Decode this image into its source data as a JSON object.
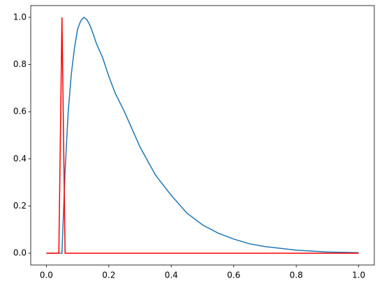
{
  "chart_data": {
    "type": "line",
    "series": [
      {
        "color": "#1f77b4",
        "x": [
          0,
          0.05,
          0.06,
          0.07,
          0.08,
          0.09,
          0.1,
          0.11,
          0.12,
          0.13,
          0.14,
          0.15,
          0.16,
          0.18,
          0.2,
          0.22,
          0.25,
          0.3,
          0.35,
          0.4,
          0.45,
          0.5,
          0.55,
          0.6,
          0.65,
          0.7,
          0.8,
          0.9,
          1.0
        ],
        "values": [
          0,
          0,
          0.35,
          0.6,
          0.76,
          0.87,
          0.95,
          0.985,
          1.0,
          0.99,
          0.965,
          0.93,
          0.89,
          0.83,
          0.75,
          0.68,
          0.6,
          0.45,
          0.33,
          0.245,
          0.17,
          0.12,
          0.085,
          0.06,
          0.04,
          0.028,
          0.013,
          0.005,
          0.002
        ]
      },
      {
        "color": "#ff0000",
        "x": [
          0,
          0.04,
          0.05,
          0.06,
          1.0
        ],
        "values": [
          0,
          0,
          1,
          0,
          0
        ]
      }
    ],
    "xlim": [
      -0.05,
      1.05
    ],
    "ylim": [
      -0.05,
      1.05
    ],
    "xticks": [
      {
        "value": 0,
        "label": "0.0"
      },
      0.2,
      0.4,
      0.6,
      0.8,
      {
        "value": 1,
        "label": "1.0"
      }
    ],
    "yticks": [
      {
        "value": 0,
        "label": "0.0"
      },
      0.2,
      0.4,
      0.6,
      0.8,
      {
        "value": 1,
        "label": "1.0"
      }
    ]
  }
}
